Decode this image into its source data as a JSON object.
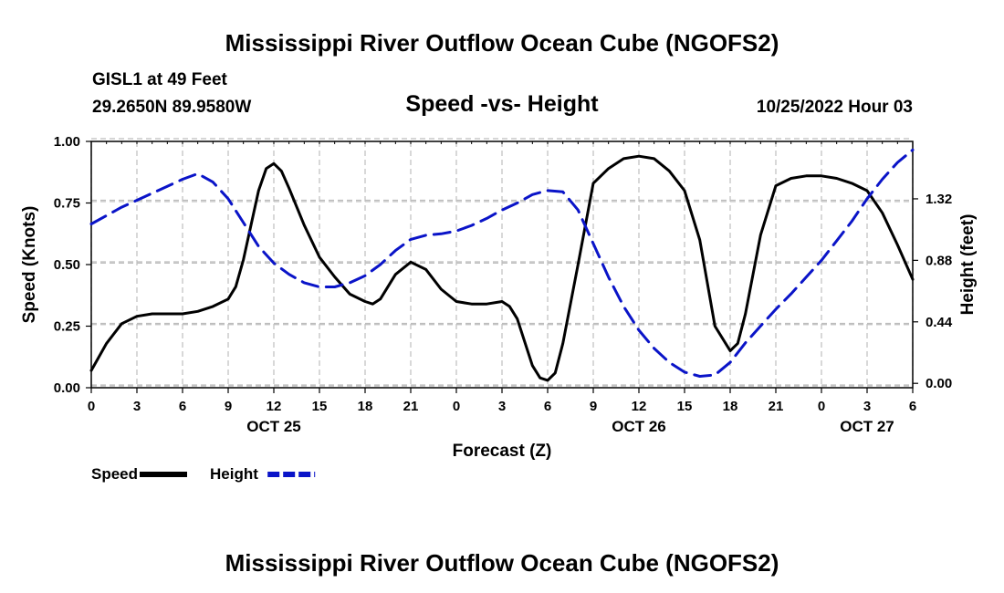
{
  "page": {
    "title": "Mississippi River Outflow Ocean Cube (NGOFS2)",
    "station": "GISL1 at 49 Feet",
    "coords": "29.2650N  89.9580W",
    "subtitle": "Speed -vs- Height",
    "datetime": "10/25/2022 Hour 03",
    "footer_title": "Mississippi River Outflow Ocean Cube (NGOFS2)"
  },
  "chart_data": {
    "type": "line",
    "title": "Speed -vs- Height",
    "xlabel": "Forecast (Z)",
    "ylabel_left": "Speed (Knots)",
    "ylabel_right": "Height (feet)",
    "x_range_hours": [
      0,
      54
    ],
    "x_ticks": [
      {
        "hour": 0,
        "label": "0"
      },
      {
        "hour": 3,
        "label": "3"
      },
      {
        "hour": 6,
        "label": "6"
      },
      {
        "hour": 9,
        "label": "9"
      },
      {
        "hour": 12,
        "label": "12"
      },
      {
        "hour": 15,
        "label": "15"
      },
      {
        "hour": 18,
        "label": "18"
      },
      {
        "hour": 21,
        "label": "21"
      },
      {
        "hour": 24,
        "label": "0"
      },
      {
        "hour": 27,
        "label": "3"
      },
      {
        "hour": 30,
        "label": "6"
      },
      {
        "hour": 33,
        "label": "9"
      },
      {
        "hour": 36,
        "label": "12"
      },
      {
        "hour": 39,
        "label": "15"
      },
      {
        "hour": 42,
        "label": "18"
      },
      {
        "hour": 45,
        "label": "21"
      },
      {
        "hour": 48,
        "label": "0"
      },
      {
        "hour": 51,
        "label": "3"
      },
      {
        "hour": 54,
        "label": "6"
      }
    ],
    "date_labels": [
      {
        "hour": 12,
        "label": "OCT 25"
      },
      {
        "hour": 36,
        "label": "OCT 26"
      },
      {
        "hour": 51,
        "label": "OCT 27"
      }
    ],
    "ylim_left": [
      0,
      1
    ],
    "y_ticks_left": [
      "0.00",
      "0.25",
      "0.50",
      "0.75",
      "1.00"
    ],
    "ylim_right": [
      -0.0313,
      1.7308
    ],
    "y_ticks_right": [
      {
        "value": 0.0,
        "label": "0.00"
      },
      {
        "value": 0.44,
        "label": "0.44"
      },
      {
        "value": 0.88,
        "label": "0.88"
      },
      {
        "value": 1.32,
        "label": "1.32"
      }
    ],
    "grid": true,
    "series": [
      {
        "name": "Speed",
        "axis": "left",
        "color": "#000000",
        "style": "solid",
        "x": [
          0,
          1,
          2,
          3,
          4,
          5,
          6,
          7,
          8,
          9,
          9.5,
          10,
          11,
          11.5,
          12,
          12.5,
          13,
          14,
          15,
          16,
          17,
          18,
          18.5,
          19,
          20,
          21,
          22,
          23,
          24,
          25,
          26,
          27,
          27.5,
          28,
          29,
          29.5,
          30,
          30.5,
          31,
          32,
          33,
          34,
          35,
          36,
          37,
          38,
          39,
          40,
          41,
          42,
          42.5,
          43,
          44,
          45,
          46,
          47,
          48,
          49,
          50,
          51,
          52,
          53,
          54
        ],
        "y": [
          0.07,
          0.18,
          0.26,
          0.29,
          0.3,
          0.3,
          0.3,
          0.31,
          0.33,
          0.36,
          0.41,
          0.52,
          0.8,
          0.89,
          0.91,
          0.88,
          0.81,
          0.66,
          0.53,
          0.45,
          0.38,
          0.35,
          0.34,
          0.36,
          0.46,
          0.51,
          0.48,
          0.4,
          0.35,
          0.34,
          0.34,
          0.35,
          0.33,
          0.28,
          0.09,
          0.04,
          0.03,
          0.06,
          0.18,
          0.5,
          0.83,
          0.89,
          0.93,
          0.94,
          0.93,
          0.88,
          0.8,
          0.6,
          0.25,
          0.15,
          0.18,
          0.3,
          0.62,
          0.82,
          0.85,
          0.86,
          0.86,
          0.85,
          0.83,
          0.8,
          0.71,
          0.58,
          0.44
        ]
      },
      {
        "name": "Height",
        "axis": "right",
        "color": "#0a14c8",
        "style": "dashed",
        "x": [
          0,
          1,
          2,
          3,
          4,
          5,
          6,
          7,
          8,
          9,
          10,
          11,
          12,
          13,
          14,
          15,
          16,
          17,
          18,
          19,
          20,
          21,
          22,
          23,
          24,
          25,
          26,
          27,
          28,
          29,
          30,
          31,
          32,
          33,
          34,
          35,
          36,
          37,
          38,
          39,
          40,
          41,
          42,
          43,
          44,
          45,
          46,
          47,
          48,
          49,
          50,
          51,
          52,
          53,
          54
        ],
        "y": [
          1.14,
          1.2,
          1.26,
          1.31,
          1.36,
          1.41,
          1.46,
          1.5,
          1.44,
          1.32,
          1.15,
          0.98,
          0.86,
          0.78,
          0.72,
          0.69,
          0.69,
          0.72,
          0.77,
          0.85,
          0.95,
          1.03,
          1.06,
          1.07,
          1.09,
          1.13,
          1.18,
          1.24,
          1.29,
          1.35,
          1.38,
          1.37,
          1.24,
          1.0,
          0.76,
          0.55,
          0.38,
          0.25,
          0.15,
          0.08,
          0.05,
          0.06,
          0.15,
          0.29,
          0.41,
          0.53,
          0.64,
          0.76,
          0.88,
          1.02,
          1.16,
          1.32,
          1.46,
          1.58,
          1.67
        ]
      }
    ],
    "legend": [
      {
        "label": "Speed",
        "color": "#000000"
      },
      {
        "label": "Height",
        "color": "#0a14c8"
      }
    ],
    "legend_position": "bottom-left"
  }
}
